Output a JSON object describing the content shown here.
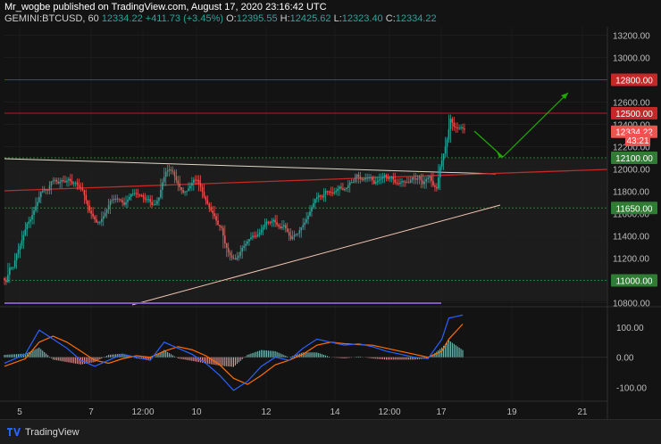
{
  "header": {
    "publisher": "Mr_wogbe published on TradingView.com, August 17, 2020 23:16:42 UTC",
    "symbol": "GEMINI:BTCUSD, 60",
    "last": "12334.22",
    "change": "+411.73 (+3.45%)",
    "o_label": "O:",
    "o_value": "12395.55",
    "h_label": "H:",
    "h_value": "12425.62",
    "l_label": "L:",
    "l_value": "12323.40",
    "c_label": "C:",
    "c_value": "12334.22"
  },
  "footer": {
    "brand": "TradingView"
  },
  "colors": {
    "background": "#131313",
    "up": "#26a69a",
    "down": "#ef5350",
    "level_red": "#b71c1c",
    "level_green": "#2e7d32",
    "arrow": "#1faa00",
    "macd": "#2962ff",
    "signal": "#ff6d00"
  },
  "chart_data": {
    "type": "candlestick",
    "symbol": "GEMINI:BTCUSD",
    "interval": "60",
    "x_ticks": [
      "5",
      "7",
      "12:00",
      "10",
      "12",
      "14",
      "12:00",
      "17",
      "19",
      "21"
    ],
    "y_ticks": [
      "13200.00",
      "13000.00",
      "12800.00",
      "12600.00",
      "12400.00",
      "12200.00",
      "12000.00",
      "11800.00",
      "11600.00",
      "11400.00",
      "11200.00",
      "11000.00",
      "10800.00"
    ],
    "ylim": [
      10780,
      13260
    ],
    "price_labels": [
      {
        "text": "12800.00",
        "value": 12800,
        "kind": "resistance"
      },
      {
        "text": "12500.00",
        "value": 12500,
        "kind": "resistance"
      },
      {
        "text": "12334.22",
        "value": 12334.22,
        "kind": "last"
      },
      {
        "text": "43:21",
        "value": 12260,
        "kind": "countdown"
      },
      {
        "text": "12100.00",
        "value": 12100,
        "kind": "support"
      },
      {
        "text": "11650.00",
        "value": 11650,
        "kind": "support"
      },
      {
        "text": "11000.00",
        "value": 11000,
        "kind": "support"
      }
    ],
    "price_path": [
      [
        0,
        11020
      ],
      [
        2,
        11150
      ],
      [
        4,
        11320
      ],
      [
        6,
        11500
      ],
      [
        8,
        11640
      ],
      [
        10,
        11760
      ],
      [
        12,
        11830
      ],
      [
        14,
        11880
      ],
      [
        16,
        11870
      ],
      [
        18,
        11900
      ],
      [
        20,
        11860
      ],
      [
        22,
        11800
      ],
      [
        24,
        11650
      ],
      [
        26,
        11520
      ],
      [
        28,
        11600
      ],
      [
        30,
        11680
      ],
      [
        32,
        11750
      ],
      [
        34,
        11700
      ],
      [
        36,
        11740
      ],
      [
        38,
        11770
      ],
      [
        40,
        11720
      ],
      [
        42,
        11680
      ],
      [
        44,
        11730
      ],
      [
        46,
        11990
      ],
      [
        48,
        12000
      ],
      [
        50,
        11850
      ],
      [
        52,
        11780
      ],
      [
        54,
        11910
      ],
      [
        56,
        11840
      ],
      [
        58,
        11700
      ],
      [
        60,
        11600
      ],
      [
        62,
        11450
      ],
      [
        64,
        11280
      ],
      [
        66,
        11180
      ],
      [
        68,
        11300
      ],
      [
        70,
        11380
      ],
      [
        72,
        11420
      ],
      [
        74,
        11500
      ],
      [
        76,
        11540
      ],
      [
        78,
        11520
      ],
      [
        80,
        11480
      ],
      [
        82,
        11400
      ],
      [
        84,
        11450
      ],
      [
        86,
        11520
      ],
      [
        88,
        11660
      ],
      [
        90,
        11740
      ],
      [
        92,
        11800
      ],
      [
        94,
        11760
      ],
      [
        96,
        11810
      ],
      [
        98,
        11860
      ],
      [
        100,
        11900
      ],
      [
        102,
        11940
      ],
      [
        104,
        11920
      ],
      [
        106,
        11880
      ],
      [
        108,
        11900
      ],
      [
        110,
        11930
      ],
      [
        112,
        11910
      ],
      [
        114,
        11890
      ],
      [
        116,
        11880
      ],
      [
        118,
        11910
      ],
      [
        120,
        11880
      ],
      [
        122,
        11900
      ],
      [
        124,
        11860
      ],
      [
        126,
        12150
      ],
      [
        128,
        12420
      ],
      [
        130,
        12370
      ],
      [
        132,
        12334
      ]
    ],
    "macd": {
      "ylim": [
        -140,
        150
      ],
      "y_ticks": [
        "100.00",
        "0.00",
        "-100.00"
      ],
      "macd_path": [
        [
          0,
          -20
        ],
        [
          6,
          10
        ],
        [
          10,
          90
        ],
        [
          14,
          60
        ],
        [
          18,
          30
        ],
        [
          22,
          -10
        ],
        [
          26,
          -30
        ],
        [
          30,
          -10
        ],
        [
          34,
          10
        ],
        [
          38,
          0
        ],
        [
          42,
          -10
        ],
        [
          46,
          50
        ],
        [
          50,
          30
        ],
        [
          54,
          10
        ],
        [
          58,
          -20
        ],
        [
          62,
          -60
        ],
        [
          66,
          -110
        ],
        [
          70,
          -80
        ],
        [
          74,
          -30
        ],
        [
          78,
          0
        ],
        [
          82,
          -10
        ],
        [
          86,
          30
        ],
        [
          90,
          60
        ],
        [
          94,
          50
        ],
        [
          98,
          40
        ],
        [
          102,
          45
        ],
        [
          106,
          35
        ],
        [
          110,
          20
        ],
        [
          114,
          10
        ],
        [
          118,
          0
        ],
        [
          122,
          -5
        ],
        [
          126,
          60
        ],
        [
          128,
          130
        ],
        [
          132,
          140
        ]
      ],
      "signal_path": [
        [
          0,
          -30
        ],
        [
          6,
          -5
        ],
        [
          10,
          50
        ],
        [
          14,
          70
        ],
        [
          18,
          50
        ],
        [
          22,
          20
        ],
        [
          26,
          -10
        ],
        [
          30,
          -20
        ],
        [
          34,
          -5
        ],
        [
          38,
          5
        ],
        [
          42,
          0
        ],
        [
          46,
          20
        ],
        [
          50,
          35
        ],
        [
          54,
          25
        ],
        [
          58,
          5
        ],
        [
          62,
          -25
        ],
        [
          66,
          -70
        ],
        [
          70,
          -90
        ],
        [
          74,
          -60
        ],
        [
          78,
          -25
        ],
        [
          82,
          -10
        ],
        [
          86,
          10
        ],
        [
          90,
          40
        ],
        [
          94,
          50
        ],
        [
          98,
          45
        ],
        [
          102,
          42
        ],
        [
          106,
          40
        ],
        [
          110,
          30
        ],
        [
          114,
          20
        ],
        [
          118,
          10
        ],
        [
          122,
          0
        ],
        [
          126,
          20
        ],
        [
          128,
          60
        ],
        [
          132,
          110
        ]
      ]
    }
  }
}
